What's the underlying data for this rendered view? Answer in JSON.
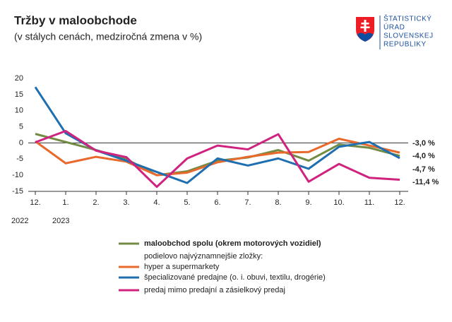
{
  "header": {
    "logo_lines": [
      "ŠTATISTICKÝ",
      "ÚRAD",
      "SLOVENSKEJ",
      "REPUBLIKY"
    ]
  },
  "chart_data": {
    "type": "line",
    "title": "Tržby v maloobchode",
    "subtitle": "(v stálych cenách, medziročná zmena v %)",
    "categories": [
      "12.",
      "1.",
      "2.",
      "3.",
      "4.",
      "5.",
      "6.",
      "7.",
      "8.",
      "9.",
      "10.",
      "11.",
      "12."
    ],
    "period_labels": [
      "2022",
      "2023"
    ],
    "ylim": [
      -15,
      20
    ],
    "yticks": [
      20,
      15,
      10,
      5,
      0,
      -5,
      -10,
      -15
    ],
    "zero_line": true,
    "legend_subheading": "podielovo najvýznamnejšie zložky:",
    "series": [
      {
        "name": "maloobchod spolu (okrem motorových vozidiel)",
        "color": "#738c43",
        "values": [
          2.8,
          0.3,
          -2.2,
          -5,
          -10,
          -8.8,
          -5.5,
          -4.5,
          -2.2,
          -5.5,
          -0.5,
          -1.5,
          -4.0
        ],
        "value_labels": [
          null,
          null,
          null,
          null,
          null,
          null,
          null,
          null,
          null,
          null,
          null,
          null,
          "-4,0 %"
        ]
      },
      {
        "name": "hyper a supermarkety",
        "color": "#e8692b",
        "values": [
          0.5,
          -6.3,
          -4.3,
          -5.8,
          -10,
          -9.2,
          -6,
          -4.3,
          -3,
          -2.8,
          1.3,
          -0.8,
          -3.0
        ],
        "value_labels": [
          null,
          null,
          null,
          null,
          null,
          null,
          null,
          null,
          null,
          null,
          null,
          null,
          "-3,0 %"
        ]
      },
      {
        "name": "špecializované predajne (o. i. obuvi, textilu, drogérie)",
        "color": "#1f6fb0",
        "values": [
          17.3,
          3,
          -2.3,
          -5.5,
          -9,
          -12.4,
          -4.8,
          -7,
          -4.8,
          -8,
          -1.2,
          0.3,
          -4.7
        ],
        "value_labels": [
          null,
          null,
          null,
          null,
          null,
          null,
          null,
          null,
          null,
          null,
          null,
          null,
          "-4,7 %"
        ]
      },
      {
        "name": "predaj mimo predajní a zásielkový predaj",
        "color": "#d0237f",
        "values": [
          0.2,
          3.7,
          -2.4,
          -4.4,
          -13.6,
          -4.8,
          -0.8,
          -2,
          2.7,
          -12,
          -6.5,
          -10.8,
          -11.4
        ],
        "value_labels": [
          null,
          null,
          null,
          null,
          null,
          null,
          null,
          null,
          null,
          null,
          null,
          null,
          "-11,4 %"
        ]
      }
    ]
  }
}
